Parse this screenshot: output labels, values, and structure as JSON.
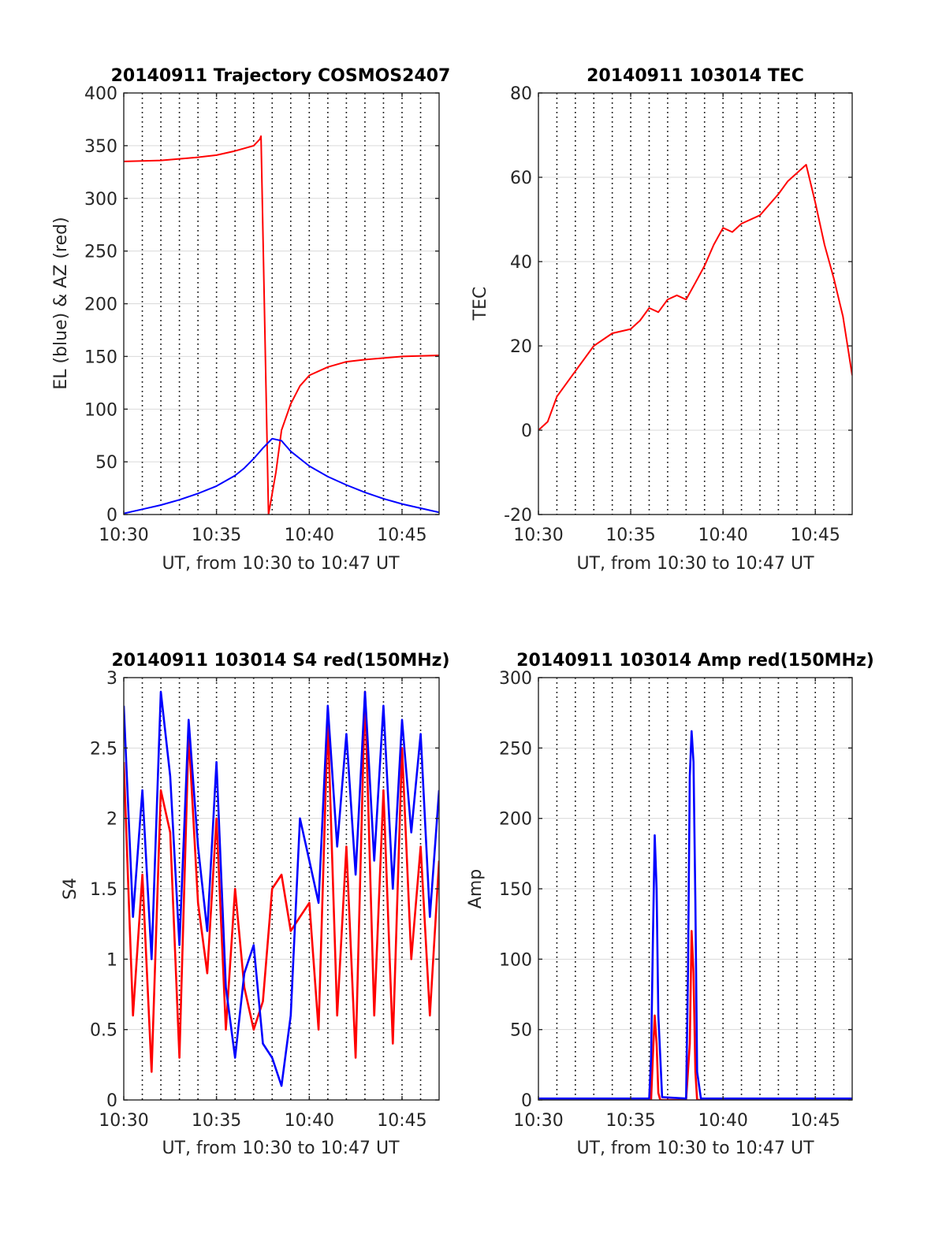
{
  "colors": {
    "red": "#ff0000",
    "blue": "#0000ff",
    "axis": "#262626",
    "grid": "#d9d9d9"
  },
  "chart_data": [
    {
      "type": "line",
      "title": "20140911 Trajectory COSMOS2407",
      "xlabel": "UT, from 10:30 to 10:47 UT",
      "ylabel": "EL (blue) & AZ (red)",
      "xlim": [
        10.5,
        10.7833
      ],
      "ylim": [
        0,
        400
      ],
      "xtick_values": [
        10.5,
        10.5833,
        10.6667,
        10.75
      ],
      "xtick_labels": [
        "10:30",
        "10:35",
        "10:40",
        "10:45"
      ],
      "ytick_values": [
        0,
        50,
        100,
        150,
        200,
        250,
        300,
        350,
        400
      ],
      "ytick_labels": [
        "0",
        "50",
        "100",
        "150",
        "200",
        "250",
        "300",
        "350",
        "400"
      ],
      "vgrid_minutes": 1,
      "grid": true,
      "series": [
        {
          "color": "#ff0000",
          "x": [
            10.5,
            10.5333,
            10.5667,
            10.5833,
            10.6,
            10.6167,
            10.6222,
            10.6233,
            10.63,
            10.6367,
            10.6417,
            10.65,
            10.6583,
            10.6667,
            10.6833,
            10.7,
            10.7167,
            10.75,
            10.7833
          ],
          "y": [
            335,
            336,
            339,
            341,
            345,
            350,
            356,
            359,
            0,
            40,
            80,
            105,
            122,
            132,
            140,
            145,
            147,
            150,
            151
          ]
        },
        {
          "color": "#0000ff",
          "x": [
            10.5,
            10.5167,
            10.5333,
            10.55,
            10.5667,
            10.5833,
            10.6,
            10.6083,
            10.6167,
            10.625,
            10.6333,
            10.6417,
            10.65,
            10.6667,
            10.6833,
            10.7,
            10.7167,
            10.7333,
            10.75,
            10.7667,
            10.7833
          ],
          "y": [
            1,
            5,
            9,
            14,
            20,
            27,
            37,
            44,
            53,
            63,
            72,
            70,
            60,
            46,
            36,
            28,
            21,
            15,
            10,
            6,
            2
          ]
        }
      ]
    },
    {
      "type": "line",
      "title": "20140911 103014 TEC",
      "xlabel": "UT, from 10:30 to 10:47 UT",
      "ylabel": "TEC",
      "xlim": [
        10.5,
        10.7833
      ],
      "ylim": [
        -20,
        80
      ],
      "xtick_values": [
        10.5,
        10.5833,
        10.6667,
        10.75
      ],
      "xtick_labels": [
        "10:30",
        "10:35",
        "10:40",
        "10:45"
      ],
      "ytick_values": [
        -20,
        0,
        20,
        40,
        60,
        80
      ],
      "ytick_labels": [
        "-20",
        "0",
        "20",
        "40",
        "60",
        "80"
      ],
      "vgrid_minutes": 1,
      "grid": true,
      "series": [
        {
          "color": "#ff0000",
          "x": [
            10.5,
            10.5083,
            10.5167,
            10.5333,
            10.55,
            10.5667,
            10.5833,
            10.5917,
            10.6,
            10.6083,
            10.6167,
            10.625,
            10.6333,
            10.6417,
            10.65,
            10.6583,
            10.6667,
            10.675,
            10.6833,
            10.7,
            10.7167,
            10.725,
            10.7417,
            10.75,
            10.7583,
            10.7667,
            10.775,
            10.7833
          ],
          "y": [
            0,
            2,
            8,
            14,
            20,
            23,
            24,
            26,
            29,
            28,
            31,
            32,
            31,
            35,
            39,
            44,
            48,
            47,
            49,
            51,
            56,
            59,
            63,
            54,
            44,
            36,
            27,
            13
          ]
        }
      ]
    },
    {
      "type": "line",
      "title": "20140911 103014 S4 red(150MHz)",
      "xlabel": "UT, from 10:30 to 10:47 UT",
      "ylabel": "S4",
      "xlim": [
        10.5,
        10.7833
      ],
      "ylim": [
        0,
        3
      ],
      "xtick_values": [
        10.5,
        10.5833,
        10.6667,
        10.75
      ],
      "xtick_labels": [
        "10:30",
        "10:35",
        "10:40",
        "10:45"
      ],
      "ytick_values": [
        0,
        0.5,
        1,
        1.5,
        2,
        2.5,
        3
      ],
      "ytick_labels": [
        "0",
        "0.5",
        "1",
        "1.5",
        "2",
        "2.5",
        "3"
      ],
      "vgrid_minutes": 1,
      "grid": true,
      "series": [
        {
          "color": "#ff0000",
          "x": [
            10.5,
            10.5083,
            10.5167,
            10.525,
            10.5333,
            10.5417,
            10.55,
            10.5583,
            10.5667,
            10.575,
            10.5833,
            10.5917,
            10.6,
            10.6083,
            10.6167,
            10.625,
            10.6333,
            10.6417,
            10.65,
            10.6583,
            10.6667,
            10.675,
            10.6833,
            10.6917,
            10.7,
            10.7083,
            10.7167,
            10.725,
            10.7333,
            10.7417,
            10.75,
            10.7583,
            10.7667,
            10.775,
            10.7833
          ],
          "y": [
            2.4,
            0.6,
            1.6,
            0.2,
            2.2,
            1.9,
            0.3,
            2.6,
            1.4,
            0.9,
            2.0,
            0.5,
            1.5,
            0.8,
            0.5,
            0.7,
            1.5,
            1.6,
            1.2,
            1.3,
            1.4,
            0.5,
            2.7,
            0.6,
            1.8,
            0.3,
            2.9,
            0.6,
            2.2,
            0.4,
            2.5,
            1.0,
            1.8,
            0.6,
            1.7
          ]
        },
        {
          "color": "#0000ff",
          "x": [
            10.5,
            10.5083,
            10.5167,
            10.525,
            10.5333,
            10.5417,
            10.55,
            10.5583,
            10.5667,
            10.575,
            10.5833,
            10.5917,
            10.6,
            10.6083,
            10.6167,
            10.625,
            10.6333,
            10.6417,
            10.65,
            10.6583,
            10.6667,
            10.675,
            10.6833,
            10.6917,
            10.7,
            10.7083,
            10.7167,
            10.725,
            10.7333,
            10.7417,
            10.75,
            10.7583,
            10.7667,
            10.775,
            10.7833
          ],
          "y": [
            2.8,
            1.3,
            2.2,
            1.0,
            2.9,
            2.3,
            1.1,
            2.7,
            1.8,
            1.2,
            2.4,
            0.8,
            0.3,
            0.9,
            1.1,
            0.4,
            0.3,
            0.1,
            0.6,
            2.0,
            1.7,
            1.4,
            2.8,
            1.8,
            2.6,
            1.6,
            2.9,
            1.7,
            2.8,
            1.5,
            2.7,
            1.9,
            2.6,
            1.3,
            2.2
          ]
        }
      ]
    },
    {
      "type": "line",
      "title": "20140911 103014 Amp red(150MHz)",
      "xlabel": "UT, from 10:30 to 10:47 UT",
      "ylabel": "Amp",
      "xlim": [
        10.5,
        10.7833
      ],
      "ylim": [
        0,
        300
      ],
      "xtick_values": [
        10.5,
        10.5833,
        10.6667,
        10.75
      ],
      "xtick_labels": [
        "10:30",
        "10:35",
        "10:40",
        "10:45"
      ],
      "ytick_values": [
        0,
        50,
        100,
        150,
        200,
        250,
        300
      ],
      "ytick_labels": [
        "0",
        "50",
        "100",
        "150",
        "200",
        "250",
        "300"
      ],
      "vgrid_minutes": 1,
      "grid": true,
      "series": [
        {
          "color": "#ff0000",
          "x": [
            10.5,
            10.6017,
            10.6033,
            10.605,
            10.6067,
            10.6083,
            10.61,
            10.6333,
            10.6367,
            10.6383,
            10.64,
            10.6417,
            10.6433,
            10.7833
          ],
          "y": [
            0,
            0,
            30,
            60,
            40,
            5,
            0,
            0,
            40,
            120,
            90,
            20,
            0,
            0
          ]
        },
        {
          "color": "#0000ff",
          "x": [
            10.5,
            10.6,
            10.6017,
            10.6033,
            10.605,
            10.6067,
            10.6083,
            10.6117,
            10.6333,
            10.635,
            10.6367,
            10.6383,
            10.64,
            10.6417,
            10.6433,
            10.6467,
            10.7833
          ],
          "y": [
            1,
            1,
            30,
            110,
            188,
            150,
            60,
            2,
            1,
            90,
            230,
            262,
            240,
            140,
            20,
            1,
            1
          ]
        }
      ]
    }
  ]
}
